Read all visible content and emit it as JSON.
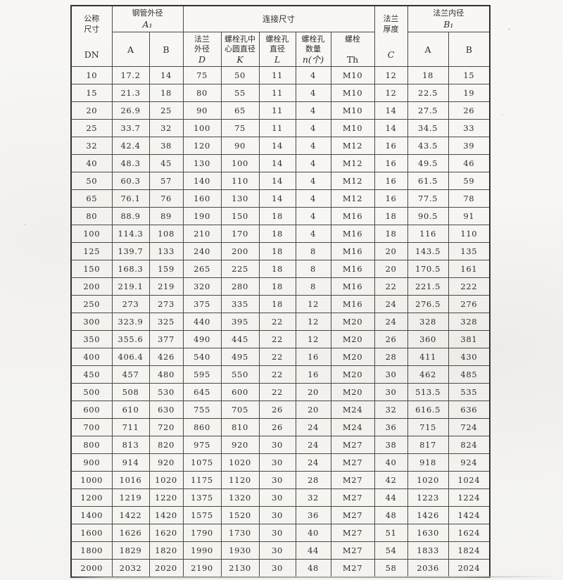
{
  "page": {
    "background_color": "#f6f5f2",
    "border_color": "#34322f",
    "text_color": "#2e2d2a"
  },
  "table": {
    "header": {
      "nominal": {
        "line1": "公称",
        "line2": "尺寸",
        "symbol": "DN"
      },
      "pipe_od": {
        "title": "钢管外径",
        "symbol": "A₁"
      },
      "connection": {
        "title": "连接尺寸"
      },
      "flange_thickness": {
        "line1": "法兰",
        "line2": "厚度",
        "symbol": "C"
      },
      "flange_id": {
        "title": "法兰内径",
        "symbol": "B₁"
      },
      "sub": {
        "pipe_a": "A",
        "pipe_b": "B",
        "flange_od": {
          "line1": "法兰",
          "line2": "外径",
          "symbol": "D"
        },
        "bolt_circle": {
          "line1": "螺栓孔中",
          "line2": "心圆直径",
          "symbol": "K"
        },
        "bolt_hole_dia": {
          "line1": "螺栓孔",
          "line2": "直径",
          "symbol": "L"
        },
        "bolt_count": {
          "line1": "螺栓孔",
          "line2": "数量",
          "symbol": "n(个)"
        },
        "bolt_thread": {
          "line1": "螺栓",
          "line2": "",
          "symbol": "Th"
        },
        "id_a": "A",
        "id_b": "B"
      }
    },
    "rows": [
      [
        "10",
        "17.2",
        "14",
        "75",
        "50",
        "11",
        "4",
        "M10",
        "12",
        "18",
        "15"
      ],
      [
        "15",
        "21.3",
        "18",
        "80",
        "55",
        "11",
        "4",
        "M10",
        "12",
        "22.5",
        "19"
      ],
      [
        "20",
        "26.9",
        "25",
        "90",
        "65",
        "11",
        "4",
        "M10",
        "14",
        "27.5",
        "26"
      ],
      [
        "25",
        "33.7",
        "32",
        "100",
        "75",
        "11",
        "4",
        "M10",
        "14",
        "34.5",
        "33"
      ],
      [
        "32",
        "42.4",
        "38",
        "120",
        "90",
        "14",
        "4",
        "M12",
        "16",
        "43.5",
        "39"
      ],
      [
        "40",
        "48.3",
        "45",
        "130",
        "100",
        "14",
        "4",
        "M12",
        "16",
        "49.5",
        "46"
      ],
      [
        "50",
        "60.3",
        "57",
        "140",
        "110",
        "14",
        "4",
        "M12",
        "16",
        "61.5",
        "59"
      ],
      [
        "65",
        "76.1",
        "76",
        "160",
        "130",
        "14",
        "4",
        "M12",
        "16",
        "77.5",
        "78"
      ],
      [
        "80",
        "88.9",
        "89",
        "190",
        "150",
        "18",
        "4",
        "M16",
        "18",
        "90.5",
        "91"
      ],
      [
        "100",
        "114.3",
        "108",
        "210",
        "170",
        "18",
        "4",
        "M16",
        "18",
        "116",
        "110"
      ],
      [
        "125",
        "139.7",
        "133",
        "240",
        "200",
        "18",
        "8",
        "M16",
        "20",
        "143.5",
        "135"
      ],
      [
        "150",
        "168.3",
        "159",
        "265",
        "225",
        "18",
        "8",
        "M16",
        "20",
        "170.5",
        "161"
      ],
      [
        "200",
        "219.1",
        "219",
        "320",
        "280",
        "18",
        "8",
        "M16",
        "22",
        "221.5",
        "222"
      ],
      [
        "250",
        "273",
        "273",
        "375",
        "335",
        "18",
        "12",
        "M16",
        "24",
        "276.5",
        "276"
      ],
      [
        "300",
        "323.9",
        "325",
        "440",
        "395",
        "22",
        "12",
        "M20",
        "24",
        "328",
        "328"
      ],
      [
        "350",
        "355.6",
        "377",
        "490",
        "445",
        "22",
        "12",
        "M20",
        "26",
        "360",
        "381"
      ],
      [
        "400",
        "406.4",
        "426",
        "540",
        "495",
        "22",
        "16",
        "M20",
        "28",
        "411",
        "430"
      ],
      [
        "450",
        "457",
        "480",
        "595",
        "550",
        "22",
        "16",
        "M20",
        "30",
        "462",
        "485"
      ],
      [
        "500",
        "508",
        "530",
        "645",
        "600",
        "22",
        "20",
        "M20",
        "30",
        "513.5",
        "535"
      ],
      [
        "600",
        "610",
        "630",
        "755",
        "705",
        "26",
        "20",
        "M24",
        "32",
        "616.5",
        "636"
      ],
      [
        "700",
        "711",
        "720",
        "860",
        "810",
        "26",
        "24",
        "M24",
        "36",
        "715",
        "724"
      ],
      [
        "800",
        "813",
        "820",
        "975",
        "920",
        "30",
        "24",
        "M27",
        "38",
        "817",
        "824"
      ],
      [
        "900",
        "914",
        "920",
        "1075",
        "1020",
        "30",
        "24",
        "M27",
        "40",
        "918",
        "924"
      ],
      [
        "1000",
        "1016",
        "1020",
        "1175",
        "1120",
        "30",
        "28",
        "M27",
        "42",
        "1020",
        "1024"
      ],
      [
        "1200",
        "1219",
        "1220",
        "1375",
        "1320",
        "30",
        "32",
        "M27",
        "44",
        "1223",
        "1224"
      ],
      [
        "1400",
        "1422",
        "1420",
        "1575",
        "1520",
        "30",
        "36",
        "M27",
        "48",
        "1426",
        "1424"
      ],
      [
        "1600",
        "1626",
        "1620",
        "1790",
        "1730",
        "30",
        "40",
        "M27",
        "51",
        "1630",
        "1624"
      ],
      [
        "1800",
        "1829",
        "1820",
        "1990",
        "1930",
        "30",
        "44",
        "M27",
        "54",
        "1833",
        "1824"
      ],
      [
        "2000",
        "2032",
        "2020",
        "2190",
        "2130",
        "30",
        "48",
        "M27",
        "58",
        "2036",
        "2024"
      ]
    ]
  }
}
